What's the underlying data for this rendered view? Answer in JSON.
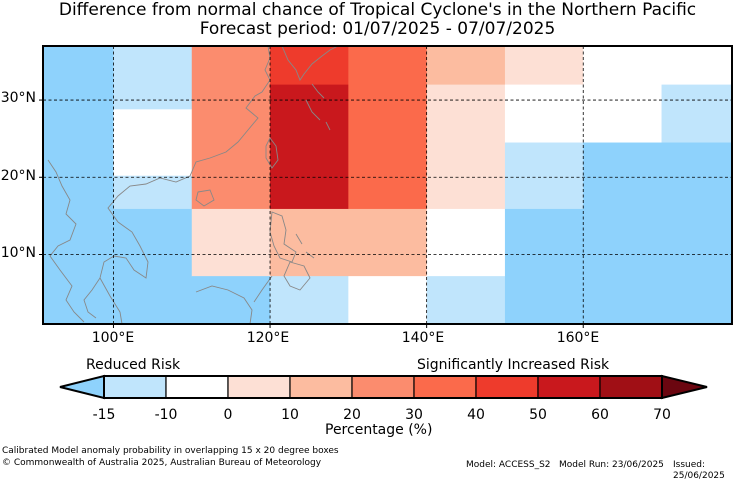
{
  "header": {
    "title": "Difference from normal chance of Tropical Cyclone's in the Northern Pacific",
    "subtitle": "Forecast period: 01/07/2025 - 07/07/2025"
  },
  "map": {
    "lat_labels": [
      "30°N",
      "20°N",
      "10°N"
    ],
    "lon_labels": [
      "100°E",
      "120°E",
      "140°E",
      "160°E"
    ],
    "extent": {
      "lon_min": 91,
      "lon_max": 179,
      "lat_min": 1,
      "lat_max": 37
    },
    "grid_lons": [
      100,
      120,
      140,
      160
    ],
    "grid_lats": [
      10,
      20,
      30
    ],
    "colors": {
      "-15": "#8ed2fc",
      "-10": "#c0e5fc",
      "0": "#ffffff",
      "10": "#fde0d5",
      "20": "#fcbca0",
      "30": "#fb8c6e",
      "40": "#fb6a4b",
      "50": "#ee3b2c",
      "60": "#c9181d",
      "70": "#a00f15",
      "over": "#6b0610",
      "land": "#888888"
    },
    "cells": [
      {
        "lon": [
          91,
          100
        ],
        "lat": [
          1,
          37
        ],
        "c": "-15"
      },
      {
        "lon": [
          100,
          110
        ],
        "lat": [
          28.8,
          37
        ],
        "c": "-10"
      },
      {
        "lon": [
          100,
          110
        ],
        "lat": [
          20.2,
          28.8
        ],
        "c": "0"
      },
      {
        "lon": [
          100,
          110
        ],
        "lat": [
          15.9,
          20.2
        ],
        "c": "-10"
      },
      {
        "lon": [
          100,
          110
        ],
        "lat": [
          1,
          15.9
        ],
        "c": "-15"
      },
      {
        "lon": [
          110,
          120
        ],
        "lat": [
          15.9,
          37
        ],
        "c": "30"
      },
      {
        "lon": [
          110,
          120
        ],
        "lat": [
          7.2,
          15.9
        ],
        "c": "10"
      },
      {
        "lon": [
          110,
          120
        ],
        "lat": [
          1,
          7.2
        ],
        "c": "-15"
      },
      {
        "lon": [
          120,
          130
        ],
        "lat": [
          32,
          37
        ],
        "c": "50"
      },
      {
        "lon": [
          120,
          130
        ],
        "lat": [
          15.9,
          32
        ],
        "c": "60"
      },
      {
        "lon": [
          120,
          130
        ],
        "lat": [
          7.2,
          15.9
        ],
        "c": "20"
      },
      {
        "lon": [
          120,
          130
        ],
        "lat": [
          1,
          7.2
        ],
        "c": "-10"
      },
      {
        "lon": [
          130,
          140
        ],
        "lat": [
          15.9,
          37
        ],
        "c": "40"
      },
      {
        "lon": [
          130,
          140
        ],
        "lat": [
          7.2,
          15.9
        ],
        "c": "20"
      },
      {
        "lon": [
          130,
          140
        ],
        "lat": [
          1,
          7.2
        ],
        "c": "0"
      },
      {
        "lon": [
          140,
          150
        ],
        "lat": [
          32,
          37
        ],
        "c": "20"
      },
      {
        "lon": [
          140,
          150
        ],
        "lat": [
          15.9,
          32
        ],
        "c": "10"
      },
      {
        "lon": [
          140,
          150
        ],
        "lat": [
          7.2,
          15.9
        ],
        "c": "0"
      },
      {
        "lon": [
          140,
          150
        ],
        "lat": [
          1,
          7.2
        ],
        "c": "-10"
      },
      {
        "lon": [
          150,
          160
        ],
        "lat": [
          32,
          37
        ],
        "c": "10"
      },
      {
        "lon": [
          150,
          160
        ],
        "lat": [
          24.5,
          32
        ],
        "c": "0"
      },
      {
        "lon": [
          150,
          160
        ],
        "lat": [
          15.9,
          24.5
        ],
        "c": "-10"
      },
      {
        "lon": [
          150,
          160
        ],
        "lat": [
          1,
          15.9
        ],
        "c": "-15"
      },
      {
        "lon": [
          160,
          170
        ],
        "lat": [
          24.5,
          37
        ],
        "c": "0"
      },
      {
        "lon": [
          160,
          170
        ],
        "lat": [
          1,
          24.5
        ],
        "c": "-15"
      },
      {
        "lon": [
          170,
          179
        ],
        "lat": [
          32,
          37
        ],
        "c": "0"
      },
      {
        "lon": [
          170,
          179
        ],
        "lat": [
          24.5,
          32
        ],
        "c": "-10"
      },
      {
        "lon": [
          170,
          179
        ],
        "lat": [
          1,
          24.5
        ],
        "c": "-15"
      }
    ]
  },
  "legend": {
    "reduced_label": "Reduced Risk",
    "increased_label": "Significantly Increased Risk",
    "levels": [
      "-15",
      "-10",
      "0",
      "10",
      "20",
      "30",
      "40",
      "50",
      "60",
      "70"
    ],
    "axis_label": "Percentage (%)"
  },
  "footer": {
    "description": "Calibrated Model anomaly probability in overlapping 15 x 20 degree boxes",
    "copyright": "© Commonwealth of Australia 2025, Australian Bureau of Meteorology",
    "model": "Model: ACCESS_S2",
    "model_run": "Model Run: 23/06/2025",
    "issued": "Issued: 25/06/2025"
  }
}
